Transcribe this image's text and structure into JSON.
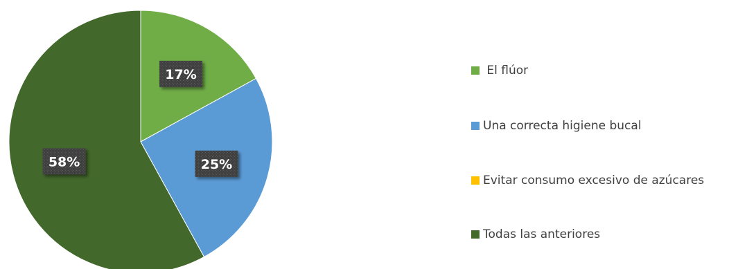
{
  "chart_data": {
    "type": "pie",
    "categories": [
      " El flúor",
      "Una correcta higiene bucal",
      "Evitar consumo excesivo de azúcares",
      "Todas las anteriores"
    ],
    "values": [
      17,
      25,
      0,
      58
    ],
    "data_labels": [
      "17%",
      "25%",
      "",
      "58%"
    ],
    "colors": [
      "#70ad47",
      "#5b9bd5",
      "#ffc000",
      "#43682b"
    ],
    "start_angle_deg": 0,
    "direction": "clockwise",
    "legend_position": "right"
  }
}
